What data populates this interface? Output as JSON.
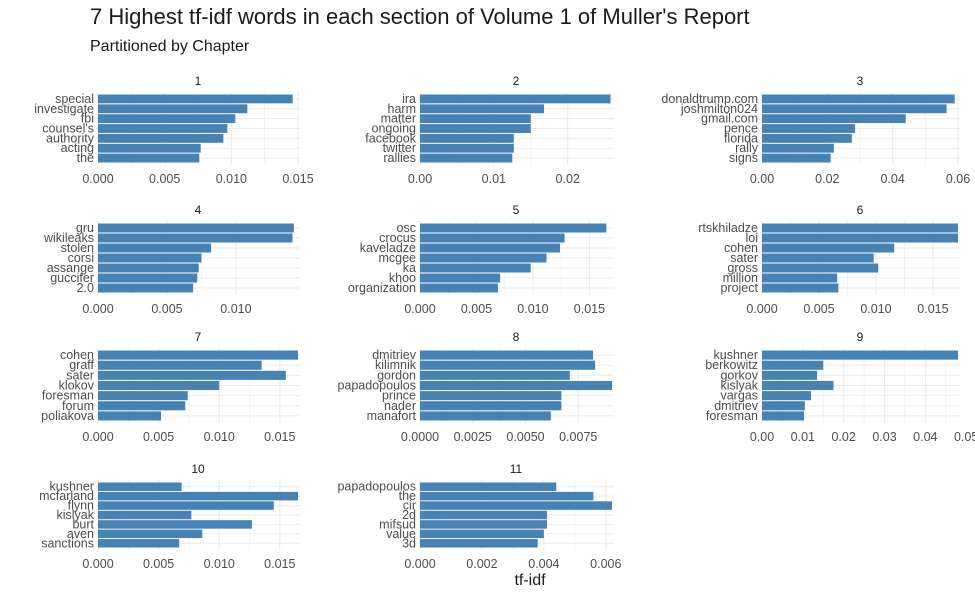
{
  "title": "7 Highest tf-idf words in each section of Volume 1 of Muller's Report",
  "subtitle": "Partitioned by Chapter",
  "xlabel": "tf-idf",
  "colors": {
    "bar": "#4682b4",
    "grid": "#ebebeb",
    "text": "#4d4d4d",
    "strip": "#1a1a1a"
  },
  "chart_data": [
    {
      "type": "bar",
      "orientation": "horizontal",
      "facet": "1",
      "categories": [
        "special",
        "investigate",
        "fbi",
        "counsel's",
        "authority",
        "acting",
        "the"
      ],
      "values": [
        0.0146,
        0.0112,
        0.0103,
        0.0097,
        0.0094,
        0.0077,
        0.0076
      ],
      "xlim": [
        0,
        0.015
      ],
      "xticks": [
        "0.000",
        "0.005",
        "0.010",
        "0.015"
      ],
      "xtick_values": [
        0,
        0.005,
        0.01,
        0.015
      ]
    },
    {
      "type": "bar",
      "orientation": "horizontal",
      "facet": "2",
      "categories": [
        "ira",
        "harm",
        "matter",
        "ongoing",
        "facebook",
        "twitter",
        "rallies"
      ],
      "values": [
        0.0258,
        0.0168,
        0.015,
        0.015,
        0.0127,
        0.0127,
        0.0125
      ],
      "xlim": [
        0,
        0.026
      ],
      "xticks": [
        "0.00",
        "0.01",
        "0.02"
      ],
      "xtick_values": [
        0,
        0.01,
        0.02
      ]
    },
    {
      "type": "bar",
      "orientation": "horizontal",
      "facet": "3",
      "categories": [
        "donaldtrump.com",
        "joshmilton024",
        "gmail.com",
        "pence",
        "florida",
        "rally",
        "signs"
      ],
      "values": [
        0.059,
        0.0565,
        0.044,
        0.0285,
        0.0275,
        0.022,
        0.021
      ],
      "xlim": [
        0,
        0.06
      ],
      "xticks": [
        "0.00",
        "0.02",
        "0.04",
        "0.06"
      ],
      "xtick_values": [
        0,
        0.02,
        0.04,
        0.06
      ]
    },
    {
      "type": "bar",
      "orientation": "horizontal",
      "facet": "4",
      "categories": [
        "gru",
        "wikileaks",
        "stolen",
        "corsi",
        "assange",
        "guccifer",
        "2.0"
      ],
      "values": [
        0.0142,
        0.0141,
        0.0082,
        0.0075,
        0.0073,
        0.0072,
        0.0069
      ],
      "xlim": [
        0,
        0.0145
      ],
      "xticks": [
        "0.000",
        "0.005",
        "0.010"
      ],
      "xtick_values": [
        0,
        0.005,
        0.01
      ]
    },
    {
      "type": "bar",
      "orientation": "horizontal",
      "facet": "5",
      "categories": [
        "osc",
        "crocus",
        "kaveladze",
        "mcgee",
        "ka",
        "khoo",
        "organization"
      ],
      "values": [
        0.0165,
        0.0128,
        0.0124,
        0.0112,
        0.0098,
        0.0071,
        0.0069
      ],
      "xlim": [
        0,
        0.017
      ],
      "xticks": [
        "0.000",
        "0.005",
        "0.010",
        "0.015"
      ],
      "xtick_values": [
        0,
        0.005,
        0.01,
        0.015
      ]
    },
    {
      "type": "bar",
      "orientation": "horizontal",
      "facet": "6",
      "categories": [
        "rtskhiladze",
        "loi",
        "cohen",
        "sater",
        "gross",
        "million",
        "project"
      ],
      "values": [
        0.0172,
        0.0172,
        0.0116,
        0.0098,
        0.0102,
        0.0066,
        0.0067
      ],
      "xlim": [
        0,
        0.0172
      ],
      "xticks": [
        "0.000",
        "0.005",
        "0.010",
        "0.015"
      ],
      "xtick_values": [
        0,
        0.005,
        0.01,
        0.015
      ]
    },
    {
      "type": "bar",
      "orientation": "horizontal",
      "facet": "7",
      "categories": [
        "cohen",
        "graff",
        "sater",
        "klokov",
        "foresman",
        "forum",
        "poliakova"
      ],
      "values": [
        0.0165,
        0.0135,
        0.0155,
        0.01,
        0.0074,
        0.0072,
        0.0052
      ],
      "xlim": [
        0,
        0.0165
      ],
      "xticks": [
        "0.000",
        "0.005",
        "0.010",
        "0.015"
      ],
      "xtick_values": [
        0,
        0.005,
        0.01,
        0.015
      ]
    },
    {
      "type": "bar",
      "orientation": "horizontal",
      "facet": "8",
      "categories": [
        "dmitriev",
        "kilimnik",
        "gordon",
        "papadopoulos",
        "prince",
        "nader",
        "manafort"
      ],
      "values": [
        0.0082,
        0.0083,
        0.0071,
        0.0091,
        0.0067,
        0.0067,
        0.0062
      ],
      "xlim": [
        0,
        0.0091
      ],
      "xticks": [
        "0.0000",
        "0.0025",
        "0.0050",
        "0.0075"
      ],
      "xtick_values": [
        0,
        0.0025,
        0.005,
        0.0075
      ]
    },
    {
      "type": "bar",
      "orientation": "horizontal",
      "facet": "9",
      "categories": [
        "kushner",
        "berkowitz",
        "gorkov",
        "kislyak",
        "vargas",
        "dmitriev",
        "foresman"
      ],
      "values": [
        0.048,
        0.015,
        0.0135,
        0.0175,
        0.012,
        0.0105,
        0.0103
      ],
      "xlim": [
        0,
        0.048
      ],
      "xticks": [
        "0.00",
        "0.01",
        "0.02",
        "0.03",
        "0.04",
        "0.05"
      ],
      "xtick_values": [
        0,
        0.01,
        0.02,
        0.03,
        0.04,
        0.05
      ]
    },
    {
      "type": "bar",
      "orientation": "horizontal",
      "facet": "10",
      "categories": [
        "kushner",
        "mcfarland",
        "flynn",
        "kislyak",
        "burt",
        "aven",
        "sanctions"
      ],
      "values": [
        0.0069,
        0.0165,
        0.0145,
        0.0077,
        0.0127,
        0.0086,
        0.0067
      ],
      "xlim": [
        0,
        0.0165
      ],
      "xticks": [
        "0.000",
        "0.005",
        "0.010",
        "0.015"
      ],
      "xtick_values": [
        0,
        0.005,
        0.01,
        0.015
      ]
    },
    {
      "type": "bar",
      "orientation": "horizontal",
      "facet": "11",
      "categories": [
        "papadopoulos",
        "the",
        "cir",
        "2d",
        "mifsud",
        "value",
        "3d"
      ],
      "values": [
        0.0044,
        0.0056,
        0.0062,
        0.0041,
        0.0041,
        0.004,
        0.0038
      ],
      "xlim": [
        0,
        0.0062
      ],
      "xticks": [
        "0.000",
        "0.002",
        "0.004",
        "0.006"
      ],
      "xtick_values": [
        0,
        0.002,
        0.004,
        0.006
      ]
    }
  ]
}
